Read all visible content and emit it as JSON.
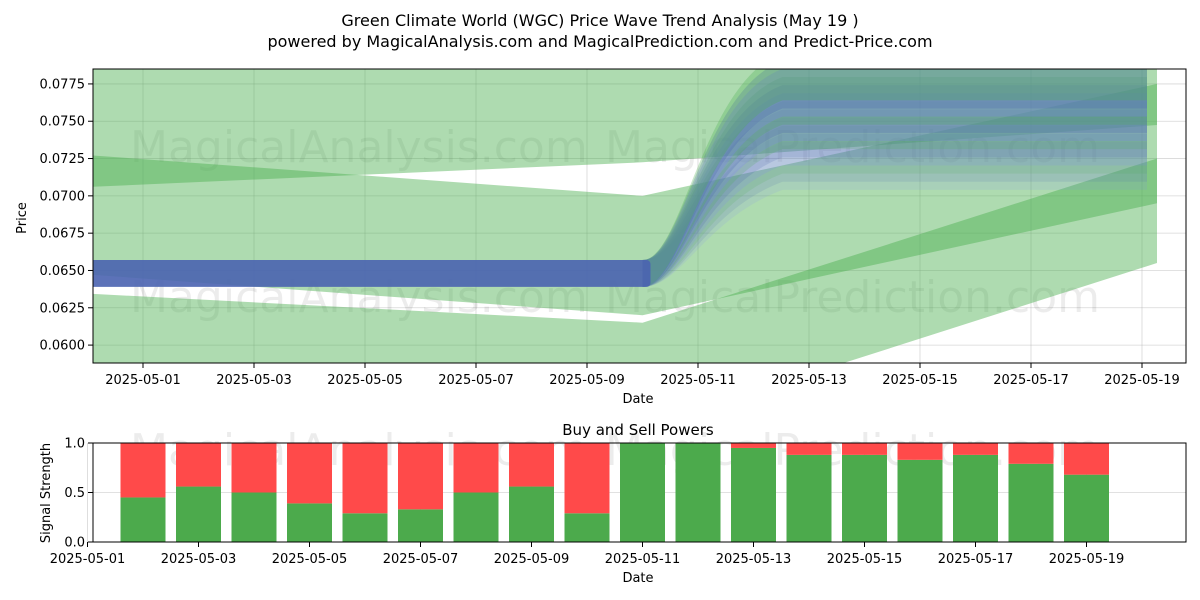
{
  "title_line1": "Green Climate World (WGC) Price Wave Trend Analysis (May 19 )",
  "title_line2": "powered by MagicalAnalysis.com and MagicalPrediction.com and Predict-Price.com",
  "watermarks": [
    "MagicalAnalysis.com",
    "MagicalPrediction.com"
  ],
  "colors": {
    "buy": "#4caa4c",
    "sell": "#ff4a4a",
    "band_green": "#4caf50",
    "band_blue": "#4a63b0",
    "proj_blue": "#8080ff"
  },
  "chart_data": [
    {
      "type": "area",
      "title": "",
      "xlabel": "Date",
      "ylabel": "Price",
      "xlim": [
        "2025-04-30",
        "2025-05-19"
      ],
      "ylim": [
        0.0588,
        0.0785
      ],
      "x_ticks": [
        "2025-05-01",
        "2025-05-03",
        "2025-05-05",
        "2025-05-07",
        "2025-05-09",
        "2025-05-11",
        "2025-05-13",
        "2025-05-15",
        "2025-05-17",
        "2025-05-19"
      ],
      "y_ticks": [
        "0.0600",
        "0.0625",
        "0.0650",
        "0.0675",
        "0.0700",
        "0.0725",
        "0.0750",
        "0.0775"
      ],
      "grid": true,
      "price_band": {
        "x": [
          "2025-04-30",
          "2025-05-10"
        ],
        "lower": 0.0639,
        "upper": 0.0657
      },
      "trend_bands": [
        {
          "points": [
            [
              "2025-04-30",
              0.0748
            ],
            [
              "2025-05-10",
              0.0765
            ],
            [
              "2025-05-19",
              0.079
            ]
          ],
          "width": 0.0085
        },
        {
          "points": [
            [
              "2025-04-30",
              0.0688
            ],
            [
              "2025-05-10",
              0.066
            ],
            [
              "2025-05-19",
              0.0735
            ]
          ],
          "width": 0.008
        },
        {
          "points": [
            [
              "2025-04-30",
              0.06
            ],
            [
              "2025-05-10",
              0.058
            ],
            [
              "2025-05-19",
              0.069
            ]
          ],
          "width": 0.007
        }
      ],
      "projection_end": {
        "x": "2025-05-19",
        "min": 0.072,
        "max": 0.078
      }
    },
    {
      "type": "bar",
      "title": "Buy and Sell Powers",
      "xlabel": "Date",
      "ylabel": "Signal Strength",
      "ylim": [
        0,
        1
      ],
      "y_ticks": [
        "0.0",
        "0.5",
        "1.0"
      ],
      "x_ticks": [
        "2025-05-01",
        "2025-05-03",
        "2025-05-05",
        "2025-05-07",
        "2025-05-09",
        "2025-05-11",
        "2025-05-13",
        "2025-05-15",
        "2025-05-17",
        "2025-05-19"
      ],
      "categories": [
        "2025-05-02",
        "2025-05-03",
        "2025-05-04",
        "2025-05-05",
        "2025-05-06",
        "2025-05-07",
        "2025-05-08",
        "2025-05-09",
        "2025-05-10",
        "2025-05-11",
        "2025-05-12",
        "2025-05-13",
        "2025-05-14",
        "2025-05-15",
        "2025-05-16",
        "2025-05-17",
        "2025-05-18",
        "2025-05-19"
      ],
      "series": [
        {
          "values": [
            0.45,
            0.56,
            0.5,
            0.39,
            0.29,
            0.33,
            0.5,
            0.56,
            0.29,
            1.0,
            1.0,
            0.95,
            0.88,
            0.88,
            0.83,
            0.88,
            0.79,
            0.68
          ]
        },
        {
          "values": [
            0.55,
            0.44,
            0.5,
            0.61,
            0.71,
            0.67,
            0.5,
            0.44,
            0.71,
            0.0,
            0.0,
            0.05,
            0.12,
            0.12,
            0.17,
            0.12,
            0.21,
            0.32
          ]
        }
      ]
    }
  ]
}
